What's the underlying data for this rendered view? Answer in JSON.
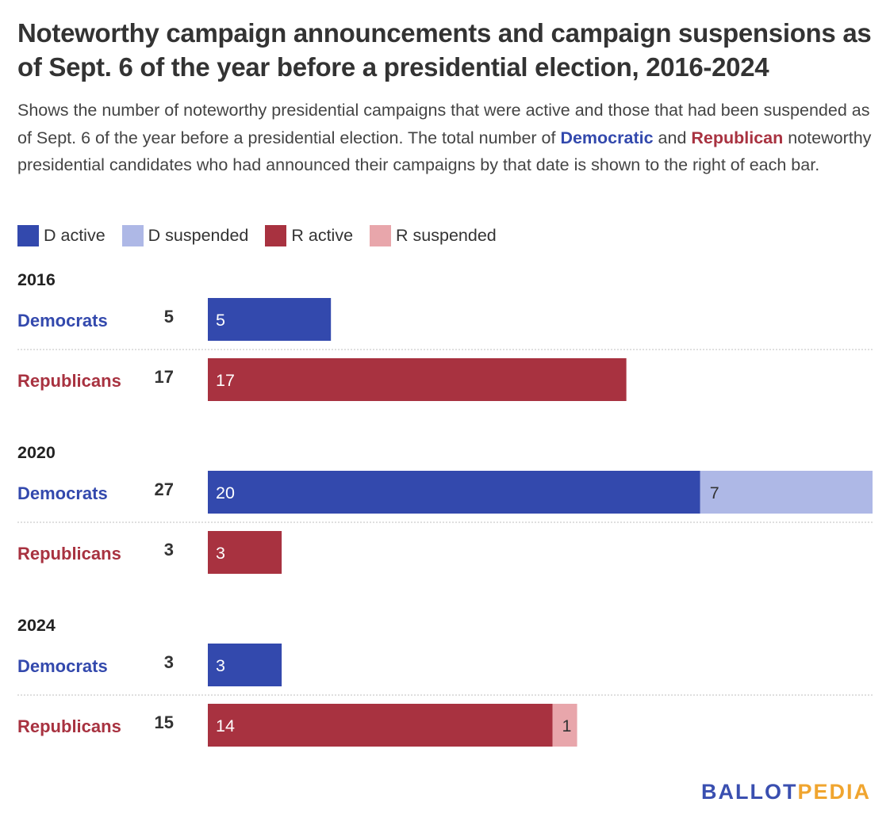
{
  "title": "Noteworthy campaign announcements and campaign suspensions as of Sept. 6 of the year before a presidential election, 2016-2024",
  "subtitle": {
    "part1": "Shows the number of noteworthy presidential campaigns that were active and those that had been suspended as of Sept. 6 of the year before a presidential election. The total number of ",
    "democratic": "Democratic",
    "part2": " and ",
    "republican": "Republican",
    "part3": " noteworthy presidential candidates who had announced their campaigns by that date is shown to the right of each bar."
  },
  "legend": [
    {
      "label": "D active",
      "color": "#3349ad"
    },
    {
      "label": "D suspended",
      "color": "#aeb8e6"
    },
    {
      "label": "R active",
      "color": "#a83240"
    },
    {
      "label": "R suspended",
      "color": "#e8a6ab"
    }
  ],
  "colors": {
    "dem_label": "#3349ad",
    "rep_label": "#a83240",
    "d_active": "#3349ad",
    "d_suspended": "#aeb8e6",
    "r_active": "#a83240",
    "r_suspended": "#e8a6ab"
  },
  "chart_data": {
    "type": "bar",
    "orientation": "horizontal",
    "stacked": true,
    "xlim": [
      0,
      27
    ],
    "groups": [
      {
        "year": "2016",
        "rows": [
          {
            "party": "Democrats",
            "total": 5,
            "active": 5,
            "suspended": 0
          },
          {
            "party": "Republicans",
            "total": 17,
            "active": 17,
            "suspended": 0
          }
        ]
      },
      {
        "year": "2020",
        "rows": [
          {
            "party": "Democrats",
            "total": 27,
            "active": 20,
            "suspended": 7
          },
          {
            "party": "Republicans",
            "total": 3,
            "active": 3,
            "suspended": 0
          }
        ]
      },
      {
        "year": "2024",
        "rows": [
          {
            "party": "Democrats",
            "total": 3,
            "active": 3,
            "suspended": 0
          },
          {
            "party": "Republicans",
            "total": 15,
            "active": 14,
            "suspended": 1
          }
        ]
      }
    ]
  },
  "logo": {
    "ballot": "BALLOT",
    "pedia": "PEDIA"
  }
}
